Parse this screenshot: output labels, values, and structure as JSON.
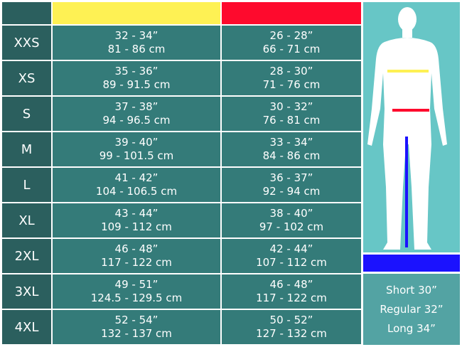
{
  "colors": {
    "chest": "#fef154",
    "waist": "#fe0a2d",
    "inseam": "#1b12fe"
  },
  "rows": [
    {
      "size": "XXS",
      "chest_in": "32 - 34”",
      "chest_cm": "81 - 86 cm",
      "waist_in": "26 - 28”",
      "waist_cm": "66 - 71 cm"
    },
    {
      "size": "XS",
      "chest_in": "35 - 36”",
      "chest_cm": "89 - 91.5 cm",
      "waist_in": "28 - 30”",
      "waist_cm": "71 - 76 cm"
    },
    {
      "size": "S",
      "chest_in": "37 - 38”",
      "chest_cm": "94 - 96.5 cm",
      "waist_in": "30 - 32”",
      "waist_cm": "76 - 81 cm"
    },
    {
      "size": "M",
      "chest_in": "39 - 40”",
      "chest_cm": "99 - 101.5 cm",
      "waist_in": "33 - 34”",
      "waist_cm": "84 - 86 cm"
    },
    {
      "size": "L",
      "chest_in": "41 - 42”",
      "chest_cm": "104 - 106.5 cm",
      "waist_in": "36 - 37”",
      "waist_cm": "92 - 94 cm"
    },
    {
      "size": "XL",
      "chest_in": "43 - 44”",
      "chest_cm": "109 - 112 cm",
      "waist_in": "38 - 40”",
      "waist_cm": "97 - 102 cm"
    },
    {
      "size": "2XL",
      "chest_in": "46 - 48”",
      "chest_cm": "117 - 122 cm",
      "waist_in": "42 - 44”",
      "waist_cm": "107 - 112 cm"
    },
    {
      "size": "3XL",
      "chest_in": "49 - 51”",
      "chest_cm": "124.5 - 129.5 cm",
      "waist_in": "46 - 48”",
      "waist_cm": "117 - 122 cm"
    },
    {
      "size": "4XL",
      "chest_in": "52 - 54”",
      "chest_cm": "132 - 137 cm",
      "waist_in": "50 - 52”",
      "waist_cm": "127 - 132 cm"
    }
  ],
  "inseam_lengths": [
    "Short 30”",
    "Regular 32”",
    "Long 34”"
  ]
}
